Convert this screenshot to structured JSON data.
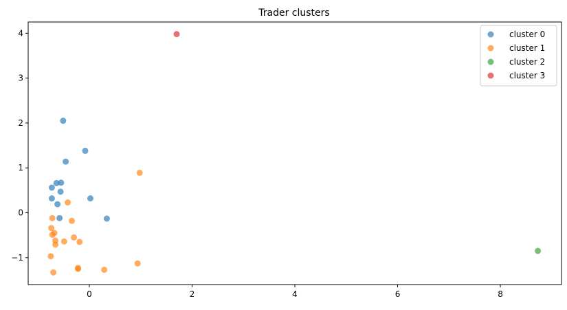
{
  "chart_data": {
    "type": "scatter",
    "title": "Trader clusters",
    "xlabel": "",
    "ylabel": "",
    "xlim": [
      -1.19,
      9.19
    ],
    "ylim": [
      -1.6,
      4.25
    ],
    "xticks": [
      0,
      2,
      4,
      6,
      8
    ],
    "yticks": [
      -1,
      0,
      1,
      2,
      3,
      4
    ],
    "grid": false,
    "legend_position": "top-right",
    "series": [
      {
        "name": "cluster 0",
        "color": "#1f77b4",
        "points": [
          [
            -0.51,
            2.05
          ],
          [
            -0.08,
            1.38
          ],
          [
            -0.46,
            1.14
          ],
          [
            -0.64,
            0.66
          ],
          [
            -0.55,
            0.67
          ],
          [
            -0.73,
            0.56
          ],
          [
            -0.56,
            0.47
          ],
          [
            -0.73,
            0.32
          ],
          [
            0.02,
            0.32
          ],
          [
            -0.62,
            0.19
          ],
          [
            -0.58,
            -0.12
          ],
          [
            0.34,
            -0.13
          ]
        ]
      },
      {
        "name": "cluster 1",
        "color": "#ff7f0e",
        "points": [
          [
            0.98,
            0.89
          ],
          [
            -0.42,
            0.23
          ],
          [
            -0.72,
            -0.12
          ],
          [
            -0.34,
            -0.18
          ],
          [
            -0.74,
            -0.34
          ],
          [
            -0.68,
            -0.45
          ],
          [
            -0.72,
            -0.49
          ],
          [
            -0.3,
            -0.55
          ],
          [
            -0.66,
            -0.62
          ],
          [
            -0.49,
            -0.64
          ],
          [
            -0.19,
            -0.65
          ],
          [
            -0.66,
            -0.71
          ],
          [
            -0.75,
            -0.97
          ],
          [
            0.94,
            -1.13
          ],
          [
            -0.22,
            -1.23
          ],
          [
            -0.22,
            -1.25
          ],
          [
            0.29,
            -1.27
          ],
          [
            -0.7,
            -1.33
          ]
        ]
      },
      {
        "name": "cluster 2",
        "color": "#2ca02c",
        "points": [
          [
            8.73,
            -0.85
          ]
        ]
      },
      {
        "name": "cluster 3",
        "color": "#d62728",
        "points": [
          [
            1.7,
            3.98
          ]
        ]
      }
    ]
  }
}
